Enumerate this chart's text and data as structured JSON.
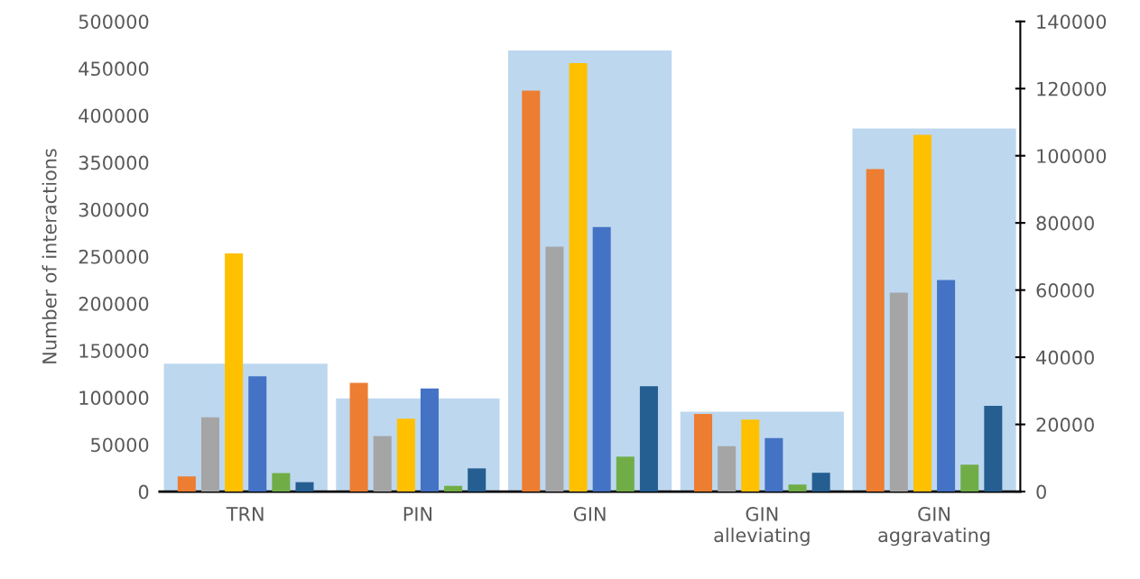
{
  "chart_data": {
    "type": "bar",
    "ylabel": "Number of interactions",
    "categories": [
      "TRN",
      "PIN",
      "GIN",
      "GIN\nalleviating",
      "GIN\naggravating"
    ],
    "series": [
      {
        "color": "#bdd7ee",
        "axis": "y",
        "values": [
          136000,
          99000,
          469000,
          85000,
          386000
        ]
      },
      {
        "color": "#ed7d31",
        "axis": "y2",
        "values": [
          4500,
          32400,
          119400,
          23100,
          96000
        ]
      },
      {
        "color": "#a5a5a5",
        "axis": "y2",
        "values": [
          22100,
          16500,
          72900,
          13500,
          59200
        ]
      },
      {
        "color": "#ffc000",
        "axis": "y2",
        "values": [
          70900,
          21700,
          127600,
          21400,
          106200
        ]
      },
      {
        "color": "#4472c4",
        "axis": "y2",
        "values": [
          34300,
          30700,
          78800,
          15900,
          63000
        ]
      },
      {
        "color": "#70ad47",
        "axis": "y2",
        "values": [
          5500,
          1700,
          10400,
          2100,
          8000
        ]
      },
      {
        "color": "#255e91",
        "axis": "y2",
        "values": [
          2800,
          6900,
          31400,
          5600,
          25500
        ]
      }
    ],
    "ylim": [
      0,
      500000
    ],
    "yticks": [
      0,
      50000,
      100000,
      150000,
      200000,
      250000,
      300000,
      350000,
      400000,
      450000,
      500000
    ],
    "y2lim": [
      0,
      140000
    ],
    "y2ticks": [
      0,
      20000,
      40000,
      60000,
      80000,
      100000,
      120000,
      140000
    ],
    "grid": false
  }
}
